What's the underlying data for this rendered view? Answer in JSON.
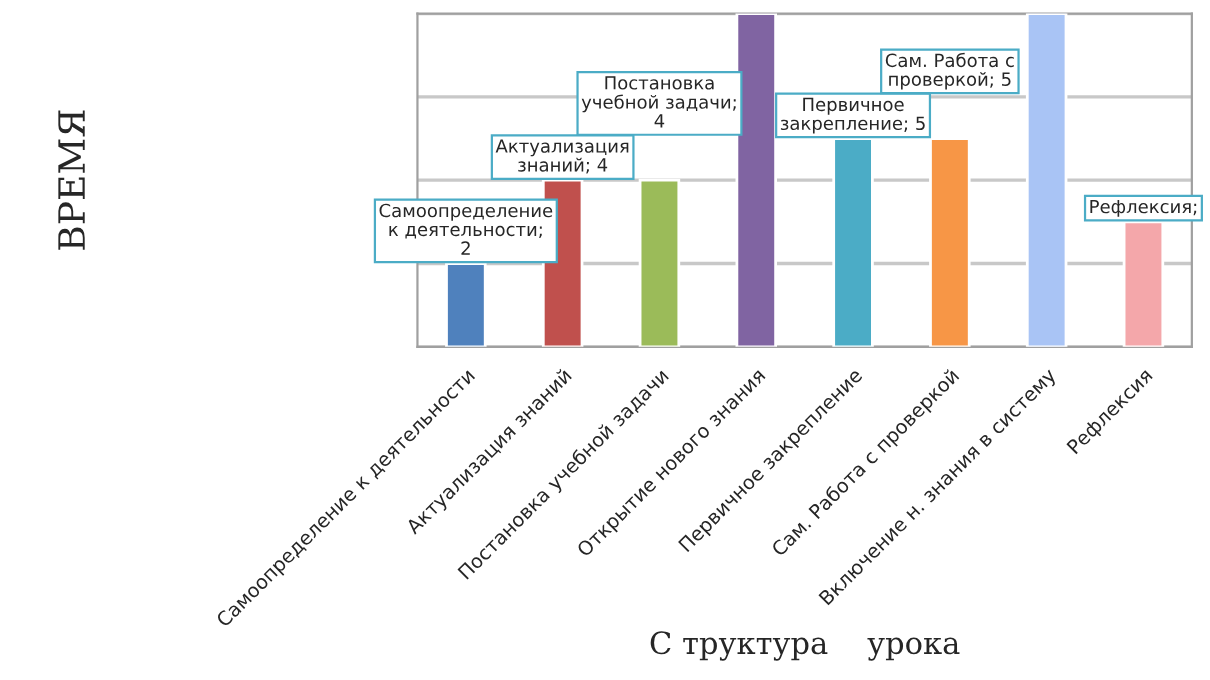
{
  "chart_data": {
    "type": "bar",
    "xlabel": "С труктура    урока",
    "ylabel": "ВРЕМЯ",
    "categories": [
      "Самоопределение к деятельности",
      "Актуализация знаний",
      "Постановка учебной задачи",
      "Открытие нового знания",
      "Первичное закрепление",
      "Сам. Работа с проверкой",
      "Включение н. знания в систему",
      "Рефлексия"
    ],
    "values": [
      2,
      4,
      4,
      8,
      5,
      5,
      8,
      3
    ],
    "colors": [
      "#4f81bd",
      "#c0504d",
      "#9bbb59",
      "#8064a2",
      "#4bacc6",
      "#f79646",
      "#a9c4f5",
      "#f4a7aa"
    ],
    "value_labels": [
      "Самоопределение к деятельности; 2",
      "Актуализация знаний; 4",
      "Постановка учебной задачи; 4",
      null,
      "Первичное закрепление; 5",
      "Сам. Работа с проверкой; 5",
      null,
      "Рефлексия;"
    ],
    "ylim": [
      0,
      8
    ],
    "yticks": [
      {
        "value": 0,
        "label": null
      },
      {
        "value": 2,
        "label": null
      },
      {
        "value": 4,
        "label": null
      },
      {
        "value": 6,
        "label": null
      },
      {
        "value": 8,
        "label": null
      }
    ],
    "tick_labels": "x",
    "grid": "y",
    "legend": false
  }
}
